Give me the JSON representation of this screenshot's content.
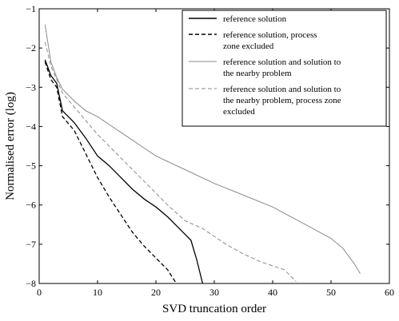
{
  "chart_data": {
    "type": "line",
    "title": "",
    "xlabel": "SVD truncation order",
    "ylabel": "Normalised error (log)",
    "xlim": [
      0,
      60
    ],
    "ylim": [
      -8,
      -1
    ],
    "xticks": [
      0,
      10,
      20,
      30,
      40,
      50,
      60
    ],
    "yticks": [
      -1,
      -2,
      -3,
      -4,
      -5,
      -6,
      -7,
      -8
    ],
    "grid": false,
    "legend_position": "top-right",
    "series": [
      {
        "name": "reference solution",
        "color": "#000000",
        "style": "solid",
        "legend_lines": [
          "reference solution"
        ],
        "x": [
          1,
          2,
          3,
          4,
          6,
          8,
          10,
          12,
          14,
          16,
          18,
          20,
          22,
          24,
          26,
          27,
          28
        ],
        "y": [
          -2.3,
          -2.7,
          -2.9,
          -3.6,
          -3.9,
          -4.3,
          -4.75,
          -5.0,
          -5.3,
          -5.6,
          -5.85,
          -6.05,
          -6.3,
          -6.6,
          -6.9,
          -7.4,
          -8.0
        ]
      },
      {
        "name": "reference solution, process zone excluded",
        "color": "#000000",
        "style": "dashed",
        "legend_lines": [
          "reference solution, process",
          "zone excluded"
        ],
        "x": [
          1,
          2,
          3,
          4,
          6,
          8,
          10,
          12,
          14,
          16,
          18,
          20,
          22,
          23.5
        ],
        "y": [
          -2.35,
          -2.8,
          -3.0,
          -3.75,
          -4.1,
          -4.7,
          -5.3,
          -5.8,
          -6.25,
          -6.7,
          -7.05,
          -7.35,
          -7.65,
          -8.0
        ]
      },
      {
        "name": "reference solution and solution to the nearby problem",
        "color": "#8a8a8a",
        "style": "solid",
        "legend_lines": [
          "reference solution and solution to",
          "the nearby problem"
        ],
        "x": [
          1,
          2,
          3,
          4,
          6,
          8,
          10,
          12,
          14,
          16,
          18,
          20,
          25,
          30,
          35,
          40,
          45,
          50,
          52,
          54,
          55
        ],
        "y": [
          -1.4,
          -2.35,
          -2.75,
          -3.05,
          -3.35,
          -3.6,
          -3.75,
          -3.95,
          -4.15,
          -4.35,
          -4.55,
          -4.75,
          -5.1,
          -5.45,
          -5.75,
          -6.05,
          -6.45,
          -6.85,
          -7.1,
          -7.5,
          -7.75
        ]
      },
      {
        "name": "reference solution and solution to the nearby problem, process zone excluded",
        "color": "#8a8a8a",
        "style": "dashed",
        "legend_lines": [
          "reference solution and solution to",
          "the nearby problem, process zone",
          "excluded"
        ],
        "x": [
          1,
          2,
          3,
          4,
          6,
          8,
          10,
          12,
          14,
          16,
          18,
          20,
          22,
          25,
          28,
          30,
          32,
          35,
          38,
          40,
          42,
          44
        ],
        "y": [
          -1.85,
          -2.45,
          -2.8,
          -3.15,
          -3.5,
          -3.85,
          -4.2,
          -4.5,
          -4.8,
          -5.1,
          -5.4,
          -5.7,
          -6.0,
          -6.4,
          -6.6,
          -6.8,
          -7.0,
          -7.25,
          -7.45,
          -7.55,
          -7.65,
          -7.95
        ]
      }
    ]
  }
}
